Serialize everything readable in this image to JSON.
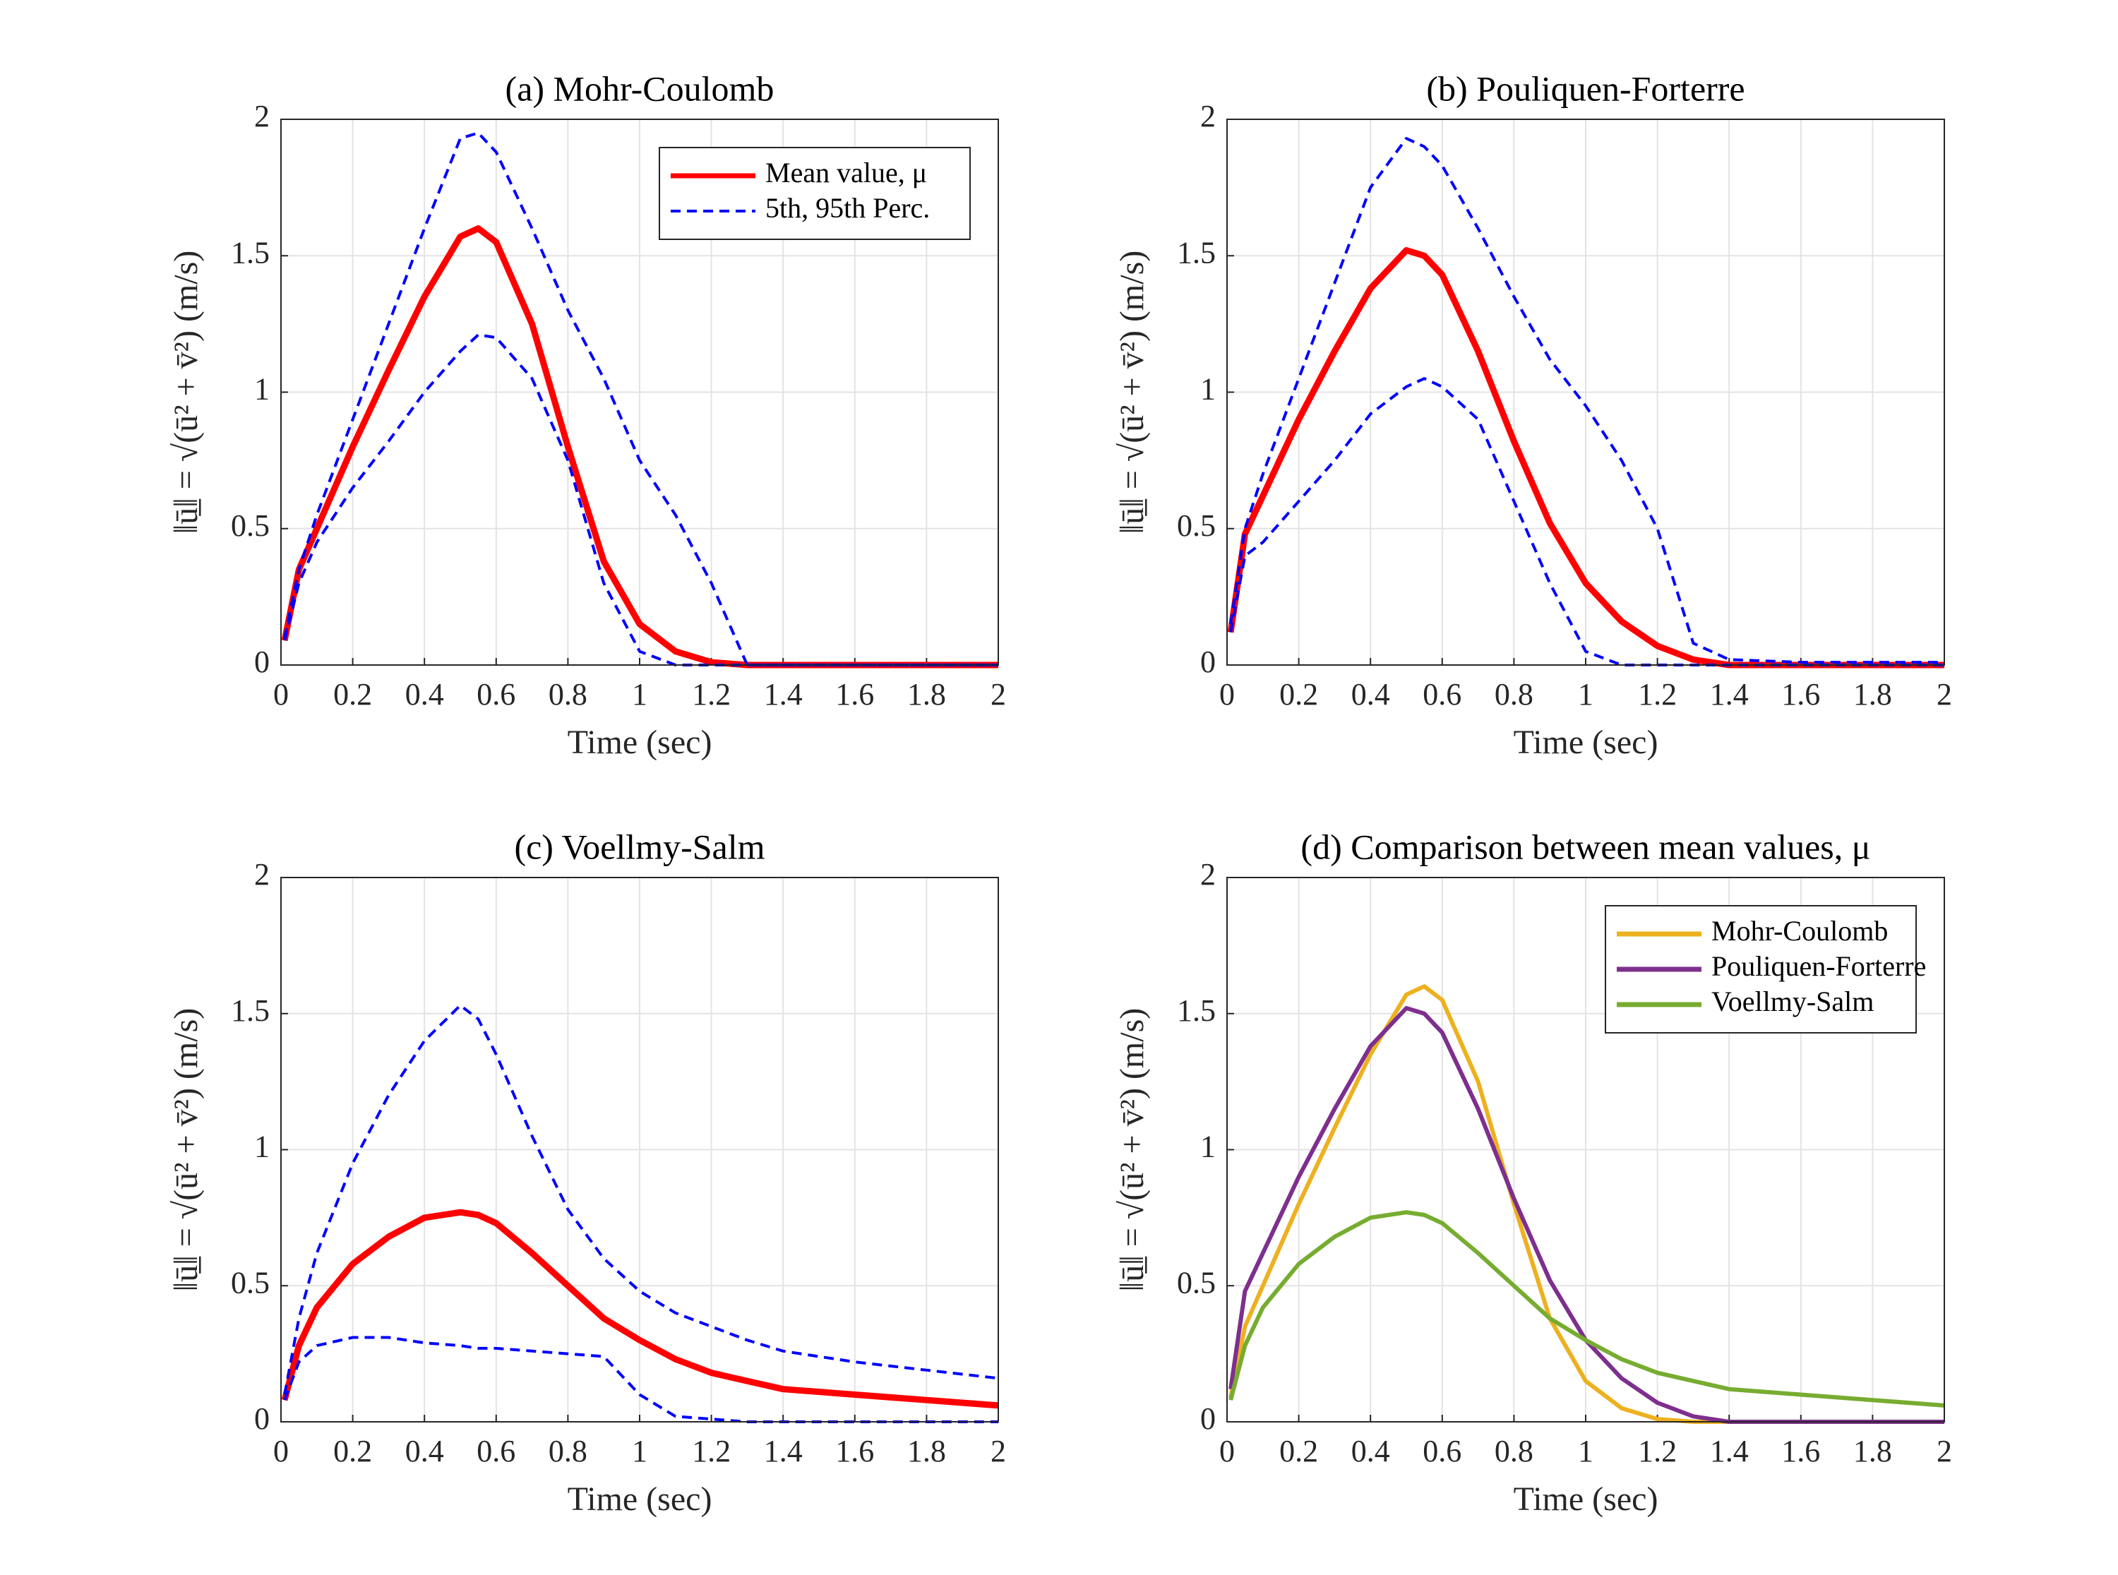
{
  "chart_data": [
    {
      "type": "line",
      "title": "(a) Mohr-Coulomb",
      "xlabel": "Time (sec)",
      "ylabel": "‖ū̲‖ = √(ū² + v̄²)  (m/s)",
      "x": [
        0.01,
        0.05,
        0.1,
        0.2,
        0.3,
        0.4,
        0.5,
        0.55,
        0.6,
        0.7,
        0.8,
        0.9,
        1.0,
        1.1,
        1.2,
        1.3,
        1.4,
        1.6,
        1.8,
        2.0
      ],
      "xlim": [
        0,
        2
      ],
      "xticks": [
        0,
        0.2,
        0.4,
        0.6,
        0.8,
        1,
        1.2,
        1.4,
        1.6,
        1.8,
        2
      ],
      "ylim": [
        0,
        2
      ],
      "yticks": [
        0,
        0.5,
        1,
        1.5,
        2
      ],
      "grid": true,
      "legend": "upper right",
      "series": [
        {
          "name": "Mean value, μ",
          "color": "#ff0000",
          "values": [
            0.09,
            0.35,
            0.5,
            0.8,
            1.08,
            1.35,
            1.57,
            1.6,
            1.55,
            1.25,
            0.8,
            0.38,
            0.15,
            0.05,
            0.01,
            0,
            0,
            0,
            0,
            0
          ]
        },
        {
          "name": "5th, 95th Perc.",
          "color": "#0000ff",
          "dash": true,
          "values": [
            0.1,
            0.35,
            0.55,
            0.9,
            1.25,
            1.6,
            1.93,
            1.95,
            1.88,
            1.6,
            1.3,
            1.05,
            0.75,
            0.55,
            0.3,
            0,
            0,
            0,
            0,
            0
          ]
        },
        {
          "color": "#0000ff",
          "dash": true,
          "values": [
            0.09,
            0.3,
            0.45,
            0.65,
            0.82,
            1.0,
            1.15,
            1.21,
            1.2,
            1.05,
            0.75,
            0.3,
            0.05,
            0,
            0,
            0,
            0,
            0,
            0,
            0
          ]
        }
      ]
    },
    {
      "type": "line",
      "title": "(b) Pouliquen-Forterre",
      "xlabel": "Time (sec)",
      "ylabel": "‖ū̲‖ = √(ū² + v̄²)  (m/s)",
      "x": [
        0.01,
        0.05,
        0.1,
        0.2,
        0.3,
        0.4,
        0.5,
        0.55,
        0.6,
        0.7,
        0.8,
        0.9,
        1.0,
        1.1,
        1.2,
        1.3,
        1.4,
        1.6,
        1.8,
        2.0
      ],
      "xlim": [
        0,
        2
      ],
      "xticks": [
        0,
        0.2,
        0.4,
        0.6,
        0.8,
        1,
        1.2,
        1.4,
        1.6,
        1.8,
        2
      ],
      "ylim": [
        0,
        2
      ],
      "yticks": [
        0,
        0.5,
        1,
        1.5,
        2
      ],
      "grid": true,
      "series": [
        {
          "color": "#ff0000",
          "values": [
            0.12,
            0.48,
            0.62,
            0.9,
            1.15,
            1.38,
            1.52,
            1.5,
            1.43,
            1.15,
            0.82,
            0.52,
            0.3,
            0.16,
            0.07,
            0.02,
            0,
            0,
            0,
            0
          ]
        },
        {
          "color": "#0000ff",
          "dash": true,
          "values": [
            0.15,
            0.5,
            0.7,
            1.05,
            1.4,
            1.75,
            1.93,
            1.9,
            1.83,
            1.6,
            1.35,
            1.12,
            0.95,
            0.75,
            0.5,
            0.08,
            0.02,
            0.01,
            0.01,
            0.01
          ]
        },
        {
          "color": "#0000ff",
          "dash": true,
          "values": [
            0.12,
            0.4,
            0.45,
            0.6,
            0.75,
            0.92,
            1.02,
            1.05,
            1.02,
            0.9,
            0.6,
            0.3,
            0.05,
            0,
            0,
            0,
            0,
            0,
            0,
            0
          ]
        }
      ]
    },
    {
      "type": "line",
      "title": "(c) Voellmy-Salm",
      "xlabel": "Time (sec)",
      "ylabel": "‖ū̲‖ = √(ū² + v̄²)  (m/s)",
      "x": [
        0.01,
        0.05,
        0.1,
        0.2,
        0.3,
        0.4,
        0.5,
        0.55,
        0.6,
        0.7,
        0.8,
        0.9,
        1.0,
        1.1,
        1.2,
        1.3,
        1.4,
        1.6,
        1.8,
        2.0
      ],
      "xlim": [
        0,
        2
      ],
      "xticks": [
        0,
        0.2,
        0.4,
        0.6,
        0.8,
        1,
        1.2,
        1.4,
        1.6,
        1.8,
        2
      ],
      "ylim": [
        0,
        2
      ],
      "yticks": [
        0,
        0.5,
        1,
        1.5,
        2
      ],
      "grid": true,
      "series": [
        {
          "color": "#ff0000",
          "values": [
            0.08,
            0.28,
            0.42,
            0.58,
            0.68,
            0.75,
            0.77,
            0.76,
            0.73,
            0.62,
            0.5,
            0.38,
            0.3,
            0.23,
            0.18,
            0.15,
            0.12,
            0.1,
            0.08,
            0.06
          ]
        },
        {
          "color": "#0000ff",
          "dash": true,
          "values": [
            0.1,
            0.38,
            0.62,
            0.95,
            1.2,
            1.4,
            1.53,
            1.48,
            1.35,
            1.05,
            0.78,
            0.6,
            0.48,
            0.4,
            0.35,
            0.3,
            0.26,
            0.22,
            0.19,
            0.16
          ]
        },
        {
          "color": "#0000ff",
          "dash": true,
          "values": [
            0.08,
            0.22,
            0.28,
            0.31,
            0.31,
            0.29,
            0.28,
            0.27,
            0.27,
            0.26,
            0.25,
            0.24,
            0.1,
            0.02,
            0.01,
            0,
            0,
            0,
            0,
            0
          ]
        }
      ]
    },
    {
      "type": "line",
      "title": "(d) Comparison between mean values, μ",
      "xlabel": "Time (sec)",
      "ylabel": "‖ū̲‖ = √(ū² + v̄²)  (m/s)",
      "x": [
        0.01,
        0.05,
        0.1,
        0.2,
        0.3,
        0.4,
        0.5,
        0.55,
        0.6,
        0.7,
        0.8,
        0.9,
        1.0,
        1.1,
        1.2,
        1.3,
        1.4,
        1.6,
        1.8,
        2.0
      ],
      "xlim": [
        0,
        2
      ],
      "xticks": [
        0,
        0.2,
        0.4,
        0.6,
        0.8,
        1,
        1.2,
        1.4,
        1.6,
        1.8,
        2
      ],
      "ylim": [
        0,
        2
      ],
      "yticks": [
        0,
        0.5,
        1,
        1.5,
        2
      ],
      "grid": true,
      "legend": "upper right",
      "series": [
        {
          "name": "Mohr-Coulomb",
          "color": "#edb120",
          "values": [
            0.09,
            0.35,
            0.5,
            0.8,
            1.08,
            1.35,
            1.57,
            1.6,
            1.55,
            1.25,
            0.8,
            0.38,
            0.15,
            0.05,
            0.01,
            0,
            0,
            0,
            0,
            0
          ]
        },
        {
          "name": "Pouliquen-Forterre",
          "color": "#7e2f8e",
          "values": [
            0.12,
            0.48,
            0.62,
            0.9,
            1.15,
            1.38,
            1.52,
            1.5,
            1.43,
            1.15,
            0.82,
            0.52,
            0.3,
            0.16,
            0.07,
            0.02,
            0,
            0,
            0,
            0
          ]
        },
        {
          "name": "Voellmy-Salm",
          "color": "#77ac30",
          "values": [
            0.08,
            0.28,
            0.42,
            0.58,
            0.68,
            0.75,
            0.77,
            0.76,
            0.73,
            0.62,
            0.5,
            0.38,
            0.3,
            0.23,
            0.18,
            0.15,
            0.12,
            0.1,
            0.08,
            0.06
          ]
        }
      ]
    }
  ]
}
